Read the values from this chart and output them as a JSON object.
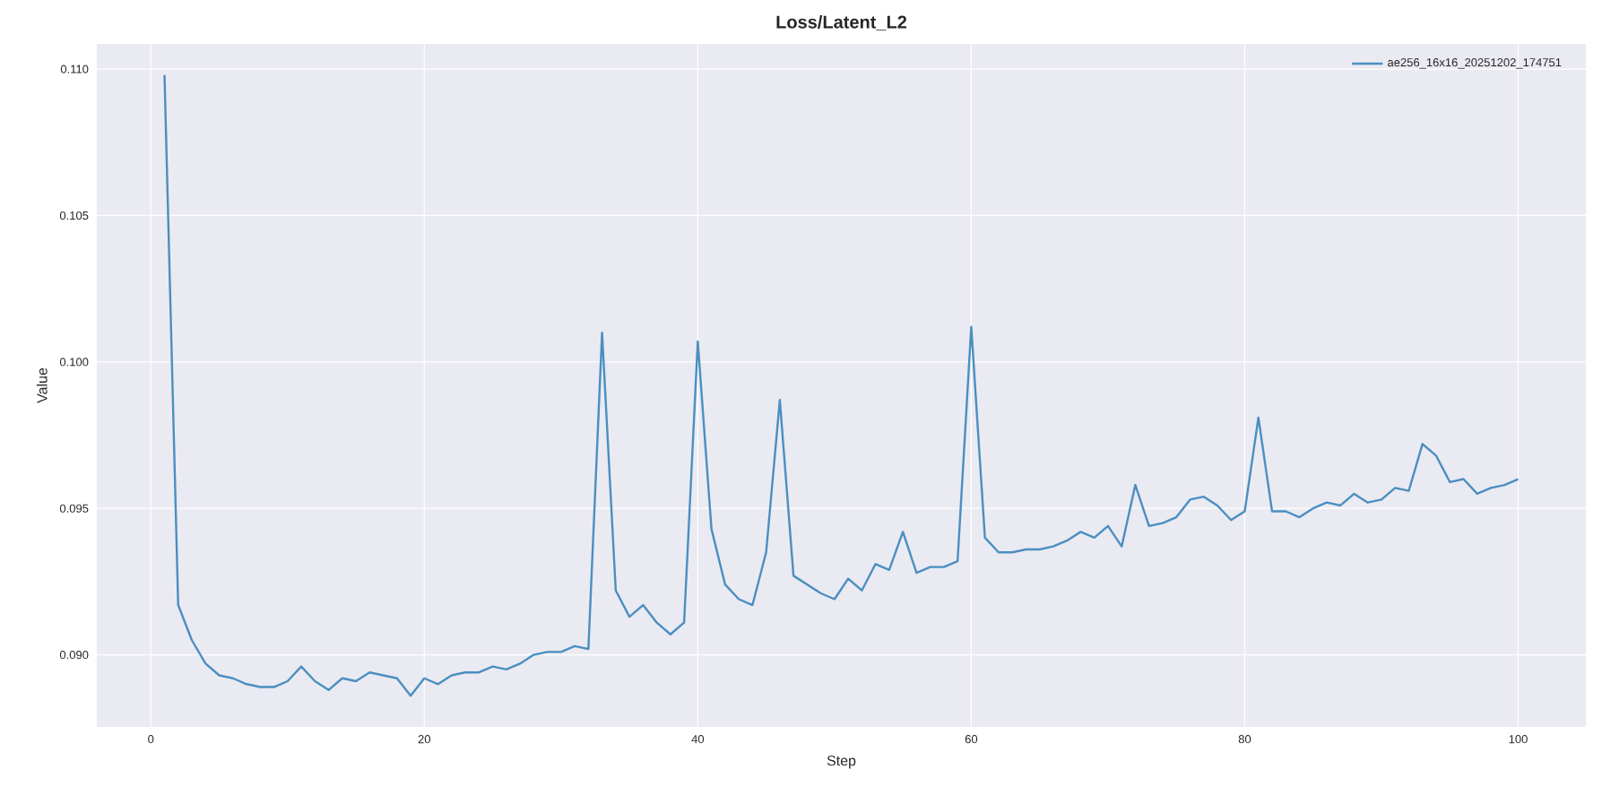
{
  "chart_data": {
    "type": "line",
    "title": "Loss/Latent_L2",
    "xlabel": "Step",
    "ylabel": "Value",
    "x": [
      1,
      2,
      3,
      4,
      5,
      6,
      7,
      8,
      9,
      10,
      11,
      12,
      13,
      14,
      15,
      16,
      17,
      18,
      19,
      20,
      21,
      22,
      23,
      24,
      25,
      26,
      27,
      28,
      29,
      30,
      31,
      32,
      33,
      34,
      35,
      36,
      37,
      38,
      39,
      40,
      41,
      42,
      43,
      44,
      45,
      46,
      47,
      48,
      49,
      50,
      51,
      52,
      53,
      54,
      55,
      56,
      57,
      58,
      59,
      60,
      61,
      62,
      63,
      64,
      65,
      66,
      67,
      68,
      69,
      70,
      71,
      72,
      73,
      74,
      75,
      76,
      77,
      78,
      79,
      80,
      81,
      82,
      83,
      84,
      85,
      86,
      87,
      88,
      89,
      90,
      91,
      92,
      93,
      94,
      95,
      96,
      97,
      98,
      99,
      100
    ],
    "series": [
      {
        "name": "ae256_16x16_20251202_174751",
        "color": "#4a8fc0",
        "values": [
          0.1098,
          0.0917,
          0.0905,
          0.0897,
          0.0893,
          0.0892,
          0.089,
          0.0889,
          0.0889,
          0.0891,
          0.0896,
          0.0891,
          0.0888,
          0.0892,
          0.0891,
          0.0894,
          0.0893,
          0.0892,
          0.0886,
          0.0892,
          0.089,
          0.0893,
          0.0894,
          0.0894,
          0.0896,
          0.0895,
          0.0897,
          0.09,
          0.0901,
          0.0901,
          0.0903,
          0.0902,
          0.101,
          0.0922,
          0.0913,
          0.0917,
          0.0911,
          0.0907,
          0.0911,
          0.1007,
          0.0943,
          0.0924,
          0.0919,
          0.0917,
          0.0935,
          0.0987,
          0.0927,
          0.0924,
          0.0921,
          0.0919,
          0.0926,
          0.0922,
          0.0931,
          0.0929,
          0.0942,
          0.0928,
          0.093,
          0.093,
          0.0932,
          0.1012,
          0.094,
          0.0935,
          0.0935,
          0.0936,
          0.0936,
          0.0937,
          0.0939,
          0.0942,
          0.094,
          0.0944,
          0.0937,
          0.0958,
          0.0944,
          0.0945,
          0.0947,
          0.0953,
          0.0954,
          0.0951,
          0.0946,
          0.0949,
          0.0981,
          0.0949,
          0.0949,
          0.0947,
          0.095,
          0.0952,
          0.0951,
          0.0955,
          0.0952,
          0.0953,
          0.0957,
          0.0956,
          0.0972,
          0.0968,
          0.0959,
          0.096,
          0.0955,
          0.0957,
          0.0958,
          0.096
        ]
      }
    ],
    "xlim": [
      -3.95,
      104.95
    ],
    "ylim": [
      0.08754,
      0.11086
    ],
    "xticks": [
      0,
      20,
      40,
      60,
      80,
      100
    ],
    "yticks": [
      {
        "value": 0.09,
        "label": "0.090"
      },
      0.095,
      {
        "value": 0.1,
        "label": "0.100"
      },
      0.105,
      {
        "value": 0.11,
        "label": "0.110"
      }
    ],
    "grid": true,
    "legend": "top right",
    "line_style": "solid"
  }
}
